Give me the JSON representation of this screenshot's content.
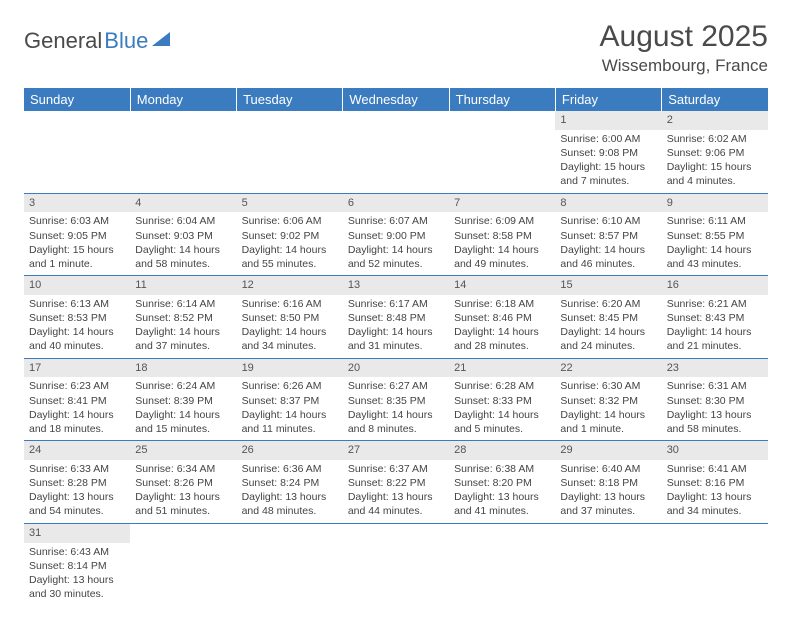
{
  "logo": {
    "part1": "General",
    "part2": "Blue",
    "color1": "#4a4a4a",
    "color2": "#3b7bbf"
  },
  "title": "August 2025",
  "location": "Wissembourg, France",
  "header_bg": "#3b7bbf",
  "daynum_bg": "#e9e9e9",
  "border_color": "#3b7bbf",
  "weekdays": [
    "Sunday",
    "Monday",
    "Tuesday",
    "Wednesday",
    "Thursday",
    "Friday",
    "Saturday"
  ],
  "weeks": [
    [
      null,
      null,
      null,
      null,
      null,
      {
        "n": "1",
        "sr": "Sunrise: 6:00 AM",
        "ss": "Sunset: 9:08 PM",
        "d1": "Daylight: 15 hours",
        "d2": "and 7 minutes."
      },
      {
        "n": "2",
        "sr": "Sunrise: 6:02 AM",
        "ss": "Sunset: 9:06 PM",
        "d1": "Daylight: 15 hours",
        "d2": "and 4 minutes."
      }
    ],
    [
      {
        "n": "3",
        "sr": "Sunrise: 6:03 AM",
        "ss": "Sunset: 9:05 PM",
        "d1": "Daylight: 15 hours",
        "d2": "and 1 minute."
      },
      {
        "n": "4",
        "sr": "Sunrise: 6:04 AM",
        "ss": "Sunset: 9:03 PM",
        "d1": "Daylight: 14 hours",
        "d2": "and 58 minutes."
      },
      {
        "n": "5",
        "sr": "Sunrise: 6:06 AM",
        "ss": "Sunset: 9:02 PM",
        "d1": "Daylight: 14 hours",
        "d2": "and 55 minutes."
      },
      {
        "n": "6",
        "sr": "Sunrise: 6:07 AM",
        "ss": "Sunset: 9:00 PM",
        "d1": "Daylight: 14 hours",
        "d2": "and 52 minutes."
      },
      {
        "n": "7",
        "sr": "Sunrise: 6:09 AM",
        "ss": "Sunset: 8:58 PM",
        "d1": "Daylight: 14 hours",
        "d2": "and 49 minutes."
      },
      {
        "n": "8",
        "sr": "Sunrise: 6:10 AM",
        "ss": "Sunset: 8:57 PM",
        "d1": "Daylight: 14 hours",
        "d2": "and 46 minutes."
      },
      {
        "n": "9",
        "sr": "Sunrise: 6:11 AM",
        "ss": "Sunset: 8:55 PM",
        "d1": "Daylight: 14 hours",
        "d2": "and 43 minutes."
      }
    ],
    [
      {
        "n": "10",
        "sr": "Sunrise: 6:13 AM",
        "ss": "Sunset: 8:53 PM",
        "d1": "Daylight: 14 hours",
        "d2": "and 40 minutes."
      },
      {
        "n": "11",
        "sr": "Sunrise: 6:14 AM",
        "ss": "Sunset: 8:52 PM",
        "d1": "Daylight: 14 hours",
        "d2": "and 37 minutes."
      },
      {
        "n": "12",
        "sr": "Sunrise: 6:16 AM",
        "ss": "Sunset: 8:50 PM",
        "d1": "Daylight: 14 hours",
        "d2": "and 34 minutes."
      },
      {
        "n": "13",
        "sr": "Sunrise: 6:17 AM",
        "ss": "Sunset: 8:48 PM",
        "d1": "Daylight: 14 hours",
        "d2": "and 31 minutes."
      },
      {
        "n": "14",
        "sr": "Sunrise: 6:18 AM",
        "ss": "Sunset: 8:46 PM",
        "d1": "Daylight: 14 hours",
        "d2": "and 28 minutes."
      },
      {
        "n": "15",
        "sr": "Sunrise: 6:20 AM",
        "ss": "Sunset: 8:45 PM",
        "d1": "Daylight: 14 hours",
        "d2": "and 24 minutes."
      },
      {
        "n": "16",
        "sr": "Sunrise: 6:21 AM",
        "ss": "Sunset: 8:43 PM",
        "d1": "Daylight: 14 hours",
        "d2": "and 21 minutes."
      }
    ],
    [
      {
        "n": "17",
        "sr": "Sunrise: 6:23 AM",
        "ss": "Sunset: 8:41 PM",
        "d1": "Daylight: 14 hours",
        "d2": "and 18 minutes."
      },
      {
        "n": "18",
        "sr": "Sunrise: 6:24 AM",
        "ss": "Sunset: 8:39 PM",
        "d1": "Daylight: 14 hours",
        "d2": "and 15 minutes."
      },
      {
        "n": "19",
        "sr": "Sunrise: 6:26 AM",
        "ss": "Sunset: 8:37 PM",
        "d1": "Daylight: 14 hours",
        "d2": "and 11 minutes."
      },
      {
        "n": "20",
        "sr": "Sunrise: 6:27 AM",
        "ss": "Sunset: 8:35 PM",
        "d1": "Daylight: 14 hours",
        "d2": "and 8 minutes."
      },
      {
        "n": "21",
        "sr": "Sunrise: 6:28 AM",
        "ss": "Sunset: 8:33 PM",
        "d1": "Daylight: 14 hours",
        "d2": "and 5 minutes."
      },
      {
        "n": "22",
        "sr": "Sunrise: 6:30 AM",
        "ss": "Sunset: 8:32 PM",
        "d1": "Daylight: 14 hours",
        "d2": "and 1 minute."
      },
      {
        "n": "23",
        "sr": "Sunrise: 6:31 AM",
        "ss": "Sunset: 8:30 PM",
        "d1": "Daylight: 13 hours",
        "d2": "and 58 minutes."
      }
    ],
    [
      {
        "n": "24",
        "sr": "Sunrise: 6:33 AM",
        "ss": "Sunset: 8:28 PM",
        "d1": "Daylight: 13 hours",
        "d2": "and 54 minutes."
      },
      {
        "n": "25",
        "sr": "Sunrise: 6:34 AM",
        "ss": "Sunset: 8:26 PM",
        "d1": "Daylight: 13 hours",
        "d2": "and 51 minutes."
      },
      {
        "n": "26",
        "sr": "Sunrise: 6:36 AM",
        "ss": "Sunset: 8:24 PM",
        "d1": "Daylight: 13 hours",
        "d2": "and 48 minutes."
      },
      {
        "n": "27",
        "sr": "Sunrise: 6:37 AM",
        "ss": "Sunset: 8:22 PM",
        "d1": "Daylight: 13 hours",
        "d2": "and 44 minutes."
      },
      {
        "n": "28",
        "sr": "Sunrise: 6:38 AM",
        "ss": "Sunset: 8:20 PM",
        "d1": "Daylight: 13 hours",
        "d2": "and 41 minutes."
      },
      {
        "n": "29",
        "sr": "Sunrise: 6:40 AM",
        "ss": "Sunset: 8:18 PM",
        "d1": "Daylight: 13 hours",
        "d2": "and 37 minutes."
      },
      {
        "n": "30",
        "sr": "Sunrise: 6:41 AM",
        "ss": "Sunset: 8:16 PM",
        "d1": "Daylight: 13 hours",
        "d2": "and 34 minutes."
      }
    ],
    [
      {
        "n": "31",
        "sr": "Sunrise: 6:43 AM",
        "ss": "Sunset: 8:14 PM",
        "d1": "Daylight: 13 hours",
        "d2": "and 30 minutes."
      },
      null,
      null,
      null,
      null,
      null,
      null
    ]
  ]
}
